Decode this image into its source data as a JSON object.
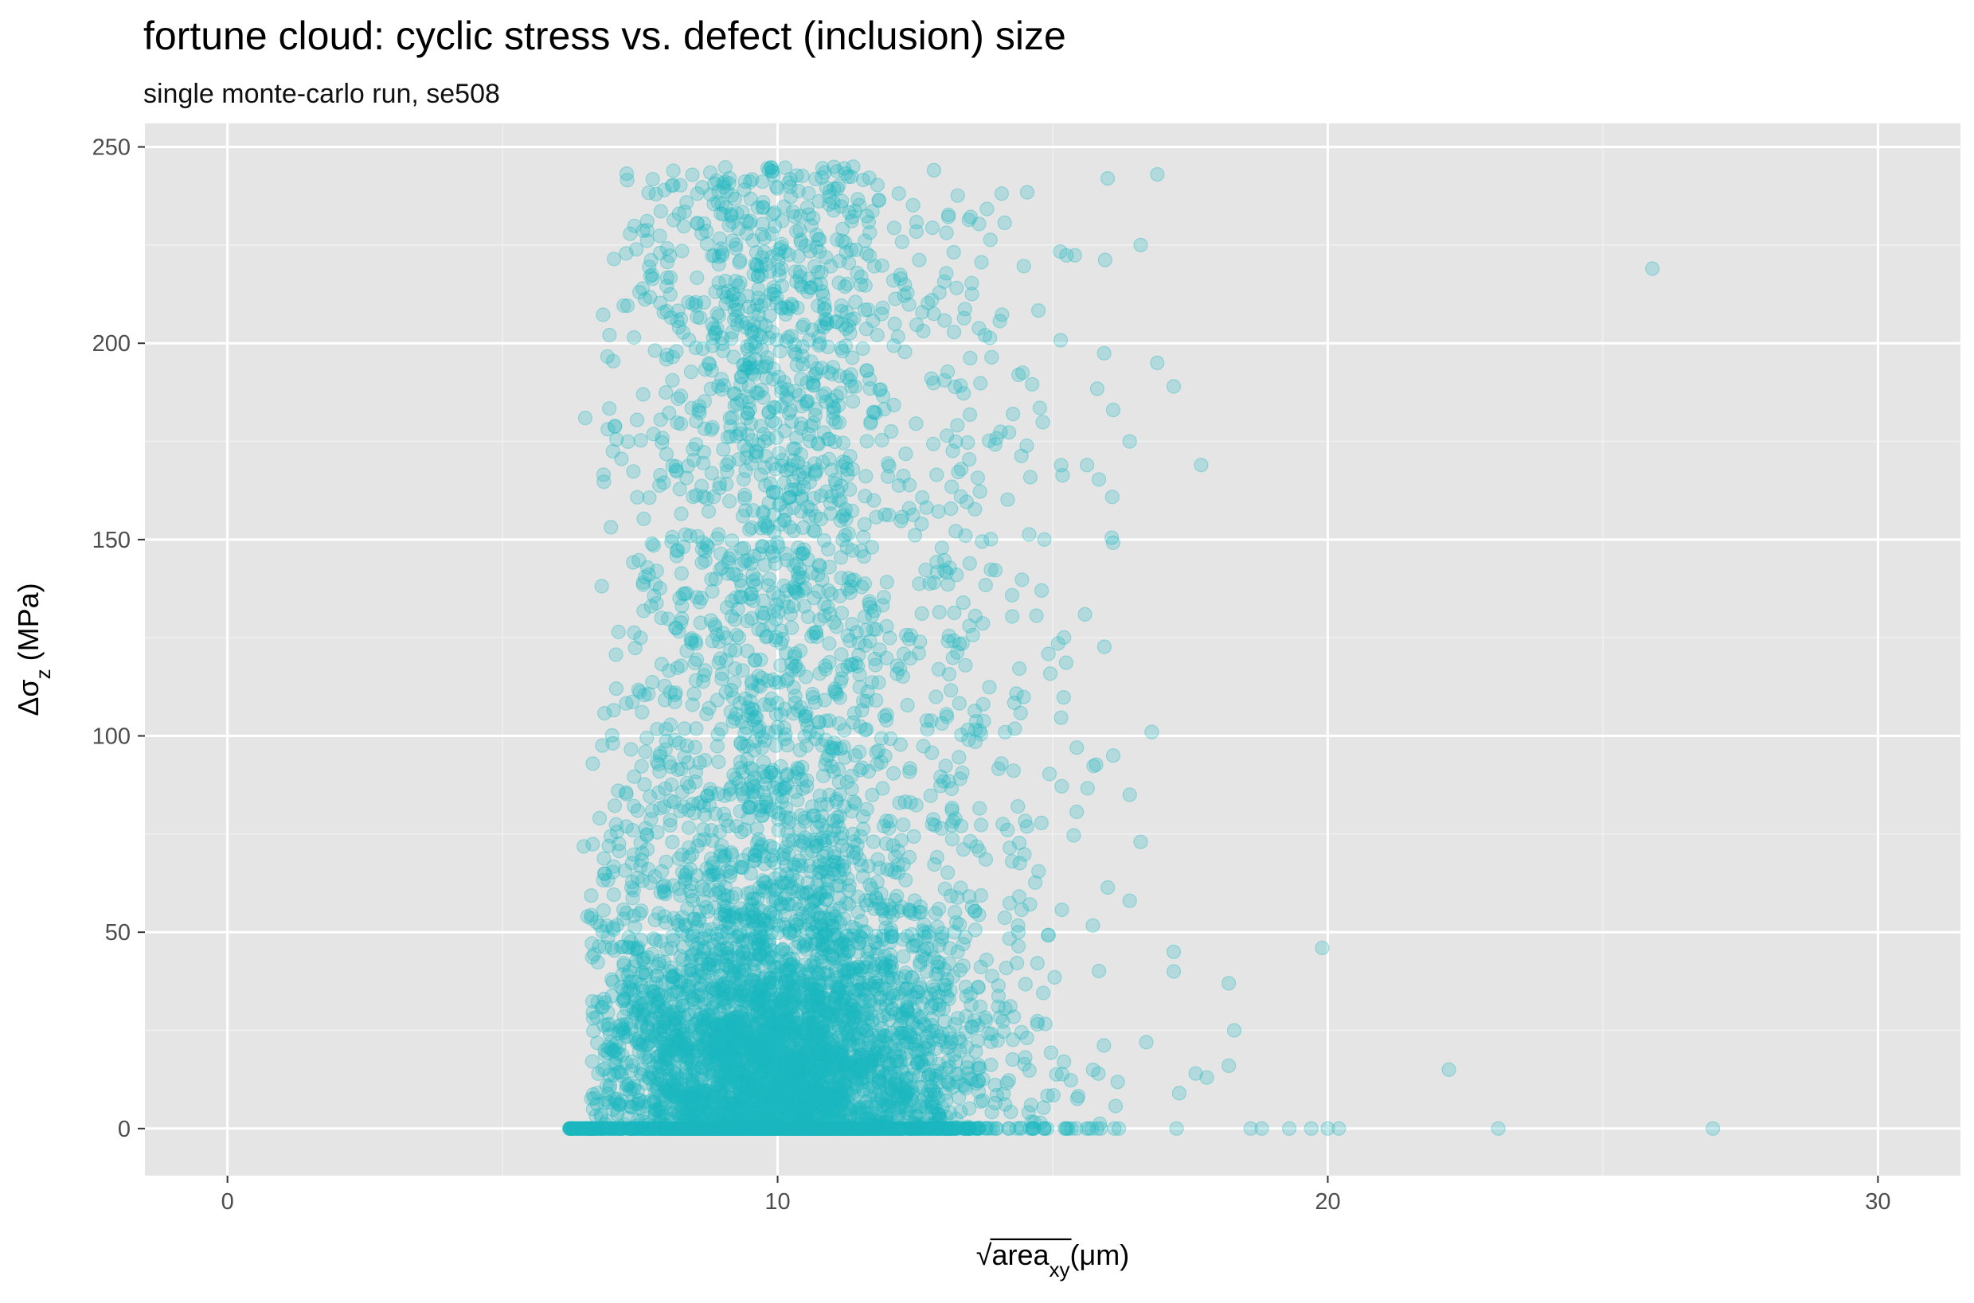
{
  "title": "fortune cloud: cyclic stress vs. defect (inclusion) size",
  "subtitle": "single monte-carlo run, se508",
  "colors": {
    "panel": "#e5e5e5",
    "grid_major": "#ffffff",
    "grid_minor": "#f0f0f0",
    "point": "#1ab8bf",
    "tick_text": "#4d4d4d"
  },
  "chart_data": {
    "type": "scatter",
    "title": "fortune cloud: cyclic stress vs. defect (inclusion) size",
    "subtitle": "single monte-carlo run, se508",
    "xlabel": {
      "radical": "√",
      "base": "area",
      "subscript": "xy",
      "unit": "(μm)"
    },
    "ylabel": {
      "prefix": "Δσ",
      "subscript": "z",
      "unit": " (MPa)"
    },
    "xlim": [
      -1.5,
      31.5
    ],
    "ylim": [
      -12,
      256
    ],
    "xticks": [
      0,
      10,
      20,
      30
    ],
    "xtick_labels": [
      "0",
      "10",
      "20",
      "30"
    ],
    "yticks": [
      0,
      50,
      100,
      150,
      200,
      250
    ],
    "ytick_labels": [
      "0",
      "50",
      "100",
      "150",
      "200",
      "250"
    ],
    "grid": true,
    "legend": "none",
    "point_alpha": 0.25,
    "cloud": {
      "description_of_density": "dense band between x≈6.5 and x≈17; points densest near x≈9–11, y≈0–60; many points exactly at y=0",
      "x_center": 9.9,
      "x_spread": 1.8,
      "y_max": 245,
      "n_points_approx": 7000
    },
    "outliers": [
      {
        "x": 25.9,
        "y": 219
      },
      {
        "x": 27.0,
        "y": 0
      },
      {
        "x": 23.1,
        "y": 0
      },
      {
        "x": 22.2,
        "y": 15
      },
      {
        "x": 19.9,
        "y": 46
      },
      {
        "x": 20.2,
        "y": 0
      },
      {
        "x": 20.0,
        "y": 0
      },
      {
        "x": 19.7,
        "y": 0
      },
      {
        "x": 19.3,
        "y": 0
      },
      {
        "x": 18.8,
        "y": 0
      },
      {
        "x": 18.2,
        "y": 37
      },
      {
        "x": 18.3,
        "y": 25
      },
      {
        "x": 18.2,
        "y": 16
      },
      {
        "x": 17.7,
        "y": 169
      },
      {
        "x": 17.2,
        "y": 45
      },
      {
        "x": 17.2,
        "y": 40
      },
      {
        "x": 17.2,
        "y": 189
      },
      {
        "x": 16.9,
        "y": 195
      },
      {
        "x": 16.9,
        "y": 243
      },
      {
        "x": 16.8,
        "y": 101
      },
      {
        "x": 16.6,
        "y": 225
      },
      {
        "x": 16.0,
        "y": 242
      },
      {
        "x": 16.1,
        "y": 183
      },
      {
        "x": 16.4,
        "y": 175
      },
      {
        "x": 16.6,
        "y": 73
      },
      {
        "x": 16.4,
        "y": 58
      },
      {
        "x": 16.4,
        "y": 85
      },
      {
        "x": 16.1,
        "y": 95
      },
      {
        "x": 16.7,
        "y": 22
      },
      {
        "x": 17.6,
        "y": 14
      },
      {
        "x": 17.3,
        "y": 9
      },
      {
        "x": 17.8,
        "y": 13
      },
      {
        "x": 18.6,
        "y": 0
      }
    ]
  }
}
